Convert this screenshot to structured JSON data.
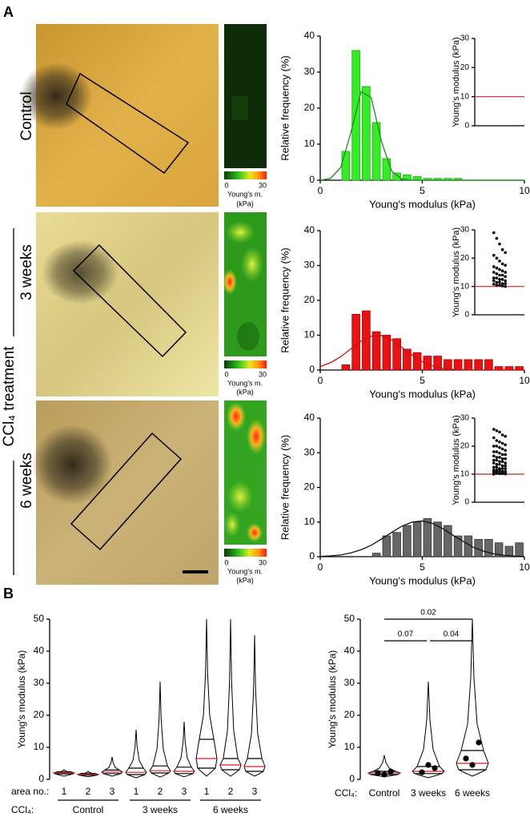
{
  "panels": [
    "A",
    "B"
  ],
  "row_labels": [
    "Control",
    "3 weeks",
    "6 weeks"
  ],
  "group_label": "CCl₄ treatment",
  "colorbar": {
    "min": 0,
    "max": 30,
    "label": "Young's m.",
    "unit": "(kPa)"
  },
  "chart_data": [
    {
      "type": "histogram",
      "color": "#33ee22",
      "edge": "#1fa815",
      "bins": [
        1,
        1.5,
        2,
        2.5,
        3,
        3.5,
        4,
        4.5,
        5,
        5.5,
        6,
        6.5,
        7
      ],
      "values": [
        8,
        36,
        26,
        16,
        6,
        2,
        1.5,
        1,
        0.5,
        0.5,
        0.5,
        0.5
      ],
      "fit": {
        "color": "#1e8c1e",
        "x": [
          0,
          0.5,
          1,
          1.5,
          2,
          2.5,
          3,
          3.5,
          4,
          4.5,
          5,
          5.5,
          6,
          6.5,
          7,
          7.5,
          8,
          8.5,
          9,
          9.5,
          10
        ],
        "values": [
          0,
          0.5,
          3.5,
          13.2,
          24.6,
          22.9,
          10.7,
          2.5,
          0.3,
          0,
          0,
          0,
          0,
          0,
          0,
          0,
          0,
          0,
          0,
          0,
          0
        ]
      },
      "xlabel": "Young's modulus (kPa)",
      "ylabel": "Relative frequency (%)",
      "xlim": [
        0,
        10
      ],
      "ylim": [
        0,
        40
      ],
      "xticks": [
        0,
        5,
        10
      ],
      "yticks": [
        0,
        10,
        20,
        30,
        40
      ]
    },
    {
      "type": "histogram",
      "color": "#ee1111",
      "edge": "#a00000",
      "bins": [
        1,
        1.5,
        2,
        2.5,
        3,
        3.5,
        4,
        4.5,
        5,
        5.5,
        6,
        6.5,
        7,
        7.5,
        8,
        8.5,
        9,
        9.5,
        10
      ],
      "values": [
        1.5,
        16,
        17,
        11,
        10,
        9,
        6,
        5,
        4,
        4,
        3,
        3,
        3,
        3,
        3,
        1,
        1,
        1
      ],
      "fit": {
        "color": "#cc1111",
        "x": [
          0,
          0.5,
          1,
          1.5,
          2,
          2.5,
          3,
          3.5,
          4,
          4.5,
          5,
          5.5,
          6,
          6.5,
          7,
          7.5,
          8,
          8.5,
          9,
          9.5,
          10
        ],
        "values": [
          1,
          2.1,
          3.8,
          6.1,
          8.3,
          9.7,
          9.9,
          8.6,
          6.5,
          4.3,
          2.4,
          1.2,
          0.5,
          0.2,
          0.1,
          0,
          0,
          0,
          0,
          0,
          0
        ]
      },
      "xlabel": "Young's modulus (kPa)",
      "ylabel": "Relative frequency (%)",
      "xlim": [
        0,
        10
      ],
      "ylim": [
        0,
        40
      ],
      "xticks": [
        0,
        5,
        10
      ],
      "yticks": [
        0,
        10,
        20,
        30,
        40
      ]
    },
    {
      "type": "histogram",
      "color": "#666666",
      "edge": "#333333",
      "bins": [
        2.5,
        3,
        3.5,
        4,
        4.5,
        5,
        5.5,
        6,
        6.5,
        7,
        7.5,
        8,
        8.5,
        9,
        9.5,
        10
      ],
      "values": [
        1,
        6,
        7,
        9,
        10,
        11,
        10,
        9,
        6,
        6,
        5,
        5,
        4,
        3,
        4
      ],
      "fit": {
        "color": "#111111",
        "x": [
          0,
          0.5,
          1,
          1.5,
          2,
          2.5,
          3,
          3.5,
          4,
          4.5,
          5,
          5.5,
          6,
          6.5,
          7,
          7.5,
          8,
          8.5,
          9,
          9.5,
          10
        ],
        "values": [
          0.09,
          0.23,
          0.5,
          1.1,
          2,
          3.3,
          5.1,
          7,
          8.8,
          10,
          10.3,
          9.6,
          8.1,
          6.2,
          4.4,
          2.7,
          1.6,
          0.8,
          0.4,
          0.17,
          0.06
        ]
      },
      "xlabel": "Young's modulus (kPa)",
      "ylabel": "Relative frequency (%)",
      "xlim": [
        0,
        10
      ],
      "ylim": [
        0,
        40
      ],
      "xticks": [
        0,
        5,
        10
      ],
      "yticks": [
        0,
        10,
        20,
        30,
        40
      ]
    },
    {
      "type": "dotplot",
      "ylabel": "Young's modulus (kPa)",
      "ylim": [
        0,
        30
      ],
      "yticks": [
        0,
        10,
        20,
        30
      ],
      "reference_line": 10,
      "reference_color": "#cc2222",
      "values": []
    },
    {
      "type": "dotplot",
      "ylabel": "Young's modulus (kPa)",
      "ylim": [
        0,
        30
      ],
      "yticks": [
        0,
        10,
        20,
        30
      ],
      "reference_line": 10,
      "reference_color": "#cc2222",
      "values": [
        29,
        27,
        25,
        23,
        22,
        21,
        20,
        19,
        18,
        17.5,
        17,
        16.5,
        16,
        15.5,
        15,
        15,
        14.5,
        14,
        14,
        13.5,
        13,
        13,
        12.5,
        12.5,
        12,
        12,
        11.5,
        11.5,
        11,
        11,
        10.8,
        10.5,
        10.5,
        10.2,
        10
      ]
    },
    {
      "type": "dotplot",
      "ylabel": "Young's modulus (kPa)",
      "ylim": [
        0,
        30
      ],
      "yticks": [
        0,
        10,
        20,
        30
      ],
      "reference_line": 10,
      "reference_color": "#cc2222",
      "values": [
        26,
        25.5,
        25,
        24,
        23.5,
        23,
        22,
        21.5,
        21,
        20.5,
        20,
        20,
        19.5,
        19,
        18.5,
        18,
        18,
        17.5,
        17,
        17,
        16.5,
        16,
        16,
        15.5,
        15.5,
        15,
        15,
        14.5,
        14.5,
        14,
        14,
        13.5,
        13.5,
        13,
        13,
        12.5,
        12.5,
        12,
        12,
        12,
        11.5,
        11.5,
        11.5,
        11,
        11,
        11,
        10.8,
        10.8,
        10.5,
        10.5,
        10.5,
        10.3,
        10.2,
        10.2,
        10.1,
        10
      ]
    },
    {
      "type": "violin",
      "ylabel": "Young's modulus (kPa)",
      "ylim": [
        0,
        50
      ],
      "yticks": [
        0,
        10,
        20,
        30,
        40,
        50
      ],
      "x_title": "area no.:",
      "group_title": "CCl₄:",
      "median_color": "#cc2222",
      "categories": [
        "1",
        "2",
        "3",
        "1",
        "2",
        "3",
        "1",
        "2",
        "3"
      ],
      "groups": [
        "Control",
        "3 weeks",
        "6 weeks"
      ],
      "distributions": [
        {
          "min": 1,
          "q1": 1.7,
          "median": 2,
          "q3": 2.3,
          "max": 3
        },
        {
          "min": 0.8,
          "q1": 1.3,
          "median": 1.5,
          "q3": 1.8,
          "max": 2.5
        },
        {
          "min": 1,
          "q1": 1.8,
          "median": 2.3,
          "q3": 2.9,
          "max": 7
        },
        {
          "min": 0.5,
          "q1": 1.5,
          "median": 2.2,
          "q3": 3.5,
          "max": 15.5
        },
        {
          "min": 0.7,
          "q1": 2,
          "median": 2.7,
          "q3": 4.2,
          "max": 30.5
        },
        {
          "min": 0.8,
          "q1": 1.8,
          "median": 2.5,
          "q3": 3.8,
          "max": 18
        },
        {
          "min": 1,
          "q1": 3.5,
          "median": 6.5,
          "q3": 12.5,
          "max": 50
        },
        {
          "min": 1,
          "q1": 3,
          "median": 4.5,
          "q3": 6.5,
          "max": 50
        },
        {
          "min": 1,
          "q1": 2.5,
          "median": 4,
          "q3": 6.5,
          "max": 45
        }
      ]
    },
    {
      "type": "violin",
      "ylabel": "Young's modulus (kPa)",
      "ylim": [
        0,
        50
      ],
      "yticks": [
        0,
        10,
        20,
        30,
        40,
        50
      ],
      "group_title": "CCl₄:",
      "median_color": "#cc2222",
      "categories": [
        "Control",
        "3 weeks",
        "6 weeks"
      ],
      "distributions": [
        {
          "min": 0.8,
          "q1": 1.5,
          "median": 2,
          "q3": 2.5,
          "max": 7.5
        },
        {
          "min": 0.5,
          "q1": 1.8,
          "median": 2.5,
          "q3": 4,
          "max": 30.5
        },
        {
          "min": 1,
          "q1": 3,
          "median": 5,
          "q3": 9,
          "max": 50
        }
      ],
      "points": [
        [
          2,
          1.5,
          2.4
        ],
        [
          2.2,
          4.5,
          3.5
        ],
        [
          6.5,
          4.5,
          11.5
        ]
      ],
      "comparisons": [
        "0.07",
        "0.04",
        "0.02"
      ]
    }
  ]
}
